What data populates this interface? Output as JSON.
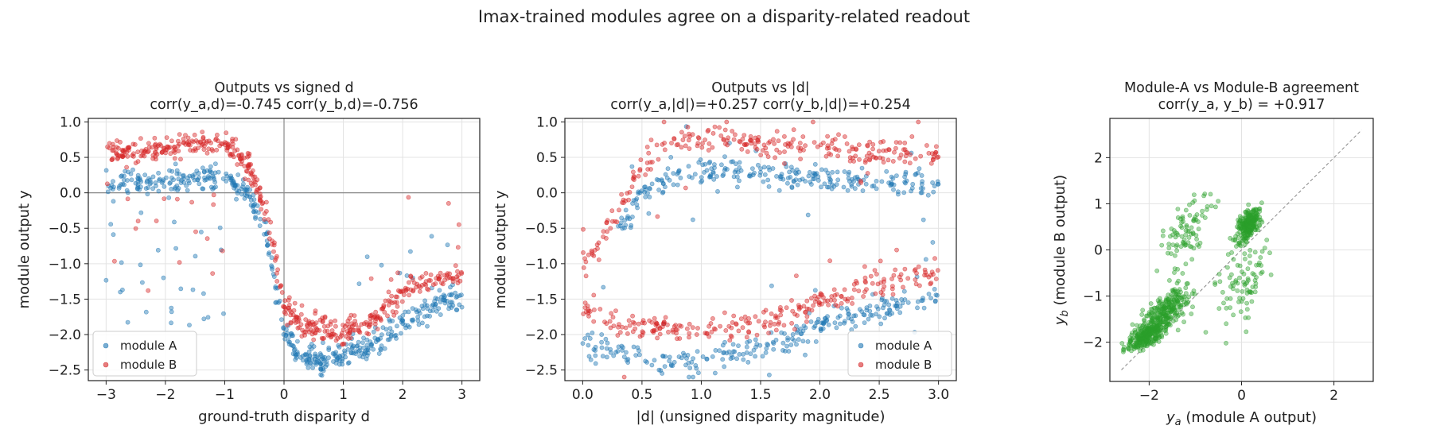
{
  "suptitle": "Imax-trained modules agree on a disparity-related readout",
  "colors": {
    "module_a": "#1f77b4",
    "module_b": "#d62728",
    "agreement": "#2ca02c"
  },
  "chart_data": [
    {
      "type": "scatter",
      "title": "Outputs vs signed d",
      "subtitle": "corr(y_a,d)=-0.745  corr(y_b,d)=-0.756",
      "xlabel": "ground-truth disparity d",
      "ylabel": "module output y",
      "xlim": [
        -3.3,
        3.3
      ],
      "ylim": [
        -2.65,
        1.05
      ],
      "xticks": [
        -3,
        -2,
        -1,
        0,
        1,
        2,
        3
      ],
      "xtick_labels": [
        "−3",
        "−2",
        "−1",
        "0",
        "1",
        "2",
        "3"
      ],
      "yticks": [
        -2.5,
        -2.0,
        -1.5,
        -1.0,
        -0.5,
        0.0,
        0.5,
        1.0
      ],
      "ytick_labels": [
        "−2.5",
        "−2.0",
        "−1.5",
        "−1.0",
        "−0.5",
        "0.0",
        "0.5",
        "1.0"
      ],
      "grid": true,
      "zero_lines": true,
      "legend": "lower-left",
      "series": [
        {
          "name": "module A",
          "color": "#1f77b4",
          "x": [
            -3.0,
            -2.6,
            -2.2,
            -1.8,
            -1.4,
            -1.0,
            -0.6,
            -0.3,
            0.0,
            0.3,
            0.6,
            1.0,
            1.4,
            1.8,
            2.2,
            2.6,
            3.0
          ],
          "y": [
            0.12,
            0.15,
            0.17,
            0.2,
            0.22,
            0.23,
            0.0,
            -0.6,
            -1.95,
            -2.3,
            -2.35,
            -2.3,
            -2.2,
            -1.95,
            -1.75,
            -1.6,
            -1.45
          ]
        },
        {
          "name": "module B",
          "color": "#d62728",
          "x": [
            -3.0,
            -2.6,
            -2.2,
            -1.8,
            -1.4,
            -1.0,
            -0.6,
            -0.3,
            0.0,
            0.3,
            0.6,
            1.0,
            1.4,
            1.8,
            2.2,
            2.6,
            3.0
          ],
          "y": [
            0.55,
            0.58,
            0.6,
            0.65,
            0.68,
            0.72,
            0.4,
            -0.3,
            -1.6,
            -1.85,
            -1.9,
            -1.95,
            -1.85,
            -1.55,
            -1.3,
            -1.2,
            -1.15
          ]
        }
      ]
    },
    {
      "type": "scatter",
      "title": "Outputs vs |d|",
      "subtitle": "corr(y_a,|d|)=+0.257  corr(y_b,|d|)=+0.254",
      "xlabel": "|d| (unsigned disparity magnitude)",
      "ylabel": "module output y",
      "xlim": [
        -0.15,
        3.15
      ],
      "ylim": [
        -2.65,
        1.05
      ],
      "xticks": [
        0.0,
        0.5,
        1.0,
        1.5,
        2.0,
        2.5,
        3.0
      ],
      "xtick_labels": [
        "0.0",
        "0.5",
        "1.0",
        "1.5",
        "2.0",
        "2.5",
        "3.0"
      ],
      "yticks": [
        -2.5,
        -2.0,
        -1.5,
        -1.0,
        -0.5,
        0.0,
        0.5,
        1.0
      ],
      "ytick_labels": [
        "−2.5",
        "−2.0",
        "−1.5",
        "−1.0",
        "−0.5",
        "0.0",
        "0.5",
        "1.0"
      ],
      "grid": true,
      "zero_lines": false,
      "legend": "lower-right",
      "series": [
        {
          "name": "module A",
          "color": "#1f77b4",
          "branches": [
            {
              "x": [
                0.0,
                0.25,
                0.5,
                0.75,
                1.0,
                1.25,
                1.5,
                1.75,
                2.0,
                2.25,
                2.5,
                2.75,
                3.0
              ],
              "y": [
                -2.15,
                -2.25,
                -2.35,
                -2.38,
                -2.36,
                -2.3,
                -2.2,
                -2.05,
                -1.9,
                -1.75,
                -1.65,
                -1.55,
                -1.45
              ]
            },
            {
              "x": [
                0.3,
                0.5,
                0.75,
                1.0,
                1.25,
                1.5,
                1.75,
                2.0,
                2.25,
                2.5,
                2.75,
                3.0
              ],
              "y": [
                -0.6,
                0.0,
                0.25,
                0.28,
                0.28,
                0.25,
                0.22,
                0.2,
                0.17,
                0.15,
                0.13,
                0.12
              ]
            }
          ]
        },
        {
          "name": "module B",
          "color": "#d62728",
          "branches": [
            {
              "x": [
                0.0,
                0.25,
                0.5,
                0.75,
                1.0,
                1.25,
                1.5,
                1.75,
                2.0,
                2.25,
                2.5,
                2.75,
                3.0
              ],
              "y": [
                -1.6,
                -1.85,
                -1.9,
                -1.92,
                -1.95,
                -1.9,
                -1.85,
                -1.7,
                -1.55,
                -1.4,
                -1.3,
                -1.2,
                -1.15
              ]
            },
            {
              "x": [
                0.0,
                0.15,
                0.3,
                0.5,
                0.75,
                1.0,
                1.25,
                1.5,
                1.75,
                2.0,
                2.25,
                2.5,
                2.75,
                3.0
              ],
              "y": [
                -1.1,
                -0.6,
                -0.3,
                0.4,
                0.75,
                0.75,
                0.72,
                0.7,
                0.68,
                0.65,
                0.6,
                0.58,
                0.56,
                0.55
              ]
            }
          ]
        }
      ]
    },
    {
      "type": "scatter",
      "title": "Module-A vs Module-B agreement",
      "subtitle": "corr(y_a, y_b) = +0.917",
      "xlabel_var": "y",
      "xlabel_sub": "a",
      "xlabel_rest": "  (module A output)",
      "ylabel_var": "y",
      "ylabel_sub": "b",
      "ylabel_rest": "  (module B output)",
      "xlim": [
        -2.85,
        2.85
      ],
      "ylim": [
        -2.85,
        2.85
      ],
      "xticks": [
        -2,
        0,
        2
      ],
      "xtick_labels": [
        "−2",
        "0",
        "2"
      ],
      "yticks": [
        -2,
        -1,
        0,
        1,
        2
      ],
      "ytick_labels": [
        "−2",
        "−1",
        "0",
        "1",
        "2"
      ],
      "grid": true,
      "identity_line": [
        -2.6,
        2.6
      ],
      "series": [
        {
          "name": "",
          "color": "#2ca02c",
          "clusters": [
            {
              "x": -2.05,
              "y": -1.85,
              "sx": 0.2,
              "sy": 0.12,
              "weight": 0.3
            },
            {
              "x": -1.6,
              "y": -1.3,
              "sx": 0.25,
              "sy": 0.2,
              "weight": 0.25
            },
            {
              "x": 0.15,
              "y": 0.55,
              "sx": 0.12,
              "sy": 0.15,
              "weight": 0.25
            },
            {
              "x": -1.2,
              "y": 0.3,
              "sx": 0.3,
              "sy": 0.35,
              "weight": 0.1
            },
            {
              "x": 0.0,
              "y": -0.6,
              "sx": 0.3,
              "sy": 0.4,
              "weight": 0.1
            }
          ]
        }
      ]
    }
  ]
}
